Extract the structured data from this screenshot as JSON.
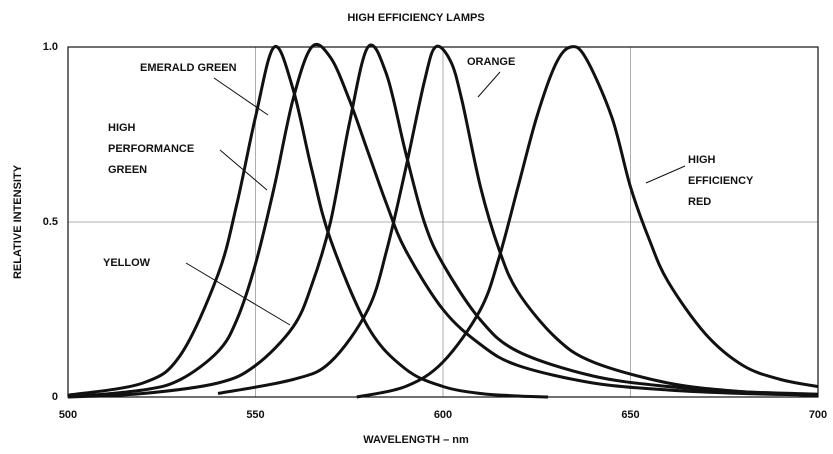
{
  "chart_data": {
    "type": "line",
    "title": "HIGH EFFICIENCY LAMPS",
    "x_label": "WAVELENGTH – nm",
    "y_label": "RELATIVE INTENSITY",
    "xlim": [
      500,
      700
    ],
    "ylim": [
      0,
      1
    ],
    "xticks": [
      500,
      550,
      600,
      650,
      700
    ],
    "yticks": [
      0,
      0.5,
      {
        "value": 1,
        "label": "1.0"
      }
    ],
    "grid": true,
    "series": [
      {
        "name": "EMERALD GREEN",
        "color": "#111111",
        "x": [
          500,
          520,
          530,
          540,
          545,
          550,
          555,
          560,
          565,
          570,
          580,
          590,
          600,
          610,
          620,
          628
        ],
        "values": [
          0.005,
          0.04,
          0.12,
          0.35,
          0.55,
          0.8,
          1.0,
          0.88,
          0.65,
          0.45,
          0.2,
          0.08,
          0.03,
          0.01,
          0.003,
          0
        ]
      },
      {
        "name": "HIGH PERFORMANCE GREEN",
        "color": "#111111",
        "x": [
          500,
          520,
          530,
          540,
          545,
          550,
          555,
          560,
          565,
          570,
          575,
          580,
          585,
          590,
          600,
          610,
          620,
          640,
          660,
          680,
          700
        ],
        "values": [
          0,
          0.02,
          0.05,
          0.13,
          0.22,
          0.38,
          0.6,
          0.85,
          1.0,
          0.97,
          0.85,
          0.7,
          0.55,
          0.42,
          0.25,
          0.15,
          0.09,
          0.04,
          0.02,
          0.01,
          0.005
        ]
      },
      {
        "name": "YELLOW",
        "color": "#111111",
        "x": [
          500,
          520,
          540,
          550,
          560,
          565,
          570,
          575,
          580,
          585,
          590,
          595,
          600,
          610,
          620,
          640,
          660,
          680,
          700
        ],
        "values": [
          0,
          0.01,
          0.04,
          0.09,
          0.2,
          0.32,
          0.5,
          0.78,
          1.0,
          0.92,
          0.7,
          0.5,
          0.38,
          0.22,
          0.13,
          0.06,
          0.03,
          0.015,
          0.008
        ]
      },
      {
        "name": "ORANGE",
        "color": "#111111",
        "x": [
          540,
          560,
          570,
          580,
          585,
          590,
          595,
          598,
          602,
          605,
          610,
          615,
          620,
          630,
          640,
          660,
          680,
          700
        ],
        "values": [
          0.01,
          0.05,
          0.1,
          0.25,
          0.42,
          0.65,
          0.9,
          1.0,
          0.96,
          0.85,
          0.6,
          0.42,
          0.3,
          0.17,
          0.1,
          0.04,
          0.015,
          0.005
        ]
      },
      {
        "name": "HIGH EFFICIENCY RED",
        "color": "#111111",
        "x": [
          577,
          590,
          600,
          610,
          615,
          620,
          625,
          630,
          634,
          638,
          645,
          650,
          655,
          660,
          670,
          680,
          690,
          700
        ],
        "values": [
          0,
          0.03,
          0.1,
          0.25,
          0.4,
          0.6,
          0.8,
          0.95,
          1.0,
          0.97,
          0.8,
          0.6,
          0.45,
          0.33,
          0.18,
          0.09,
          0.05,
          0.03
        ]
      }
    ]
  }
}
